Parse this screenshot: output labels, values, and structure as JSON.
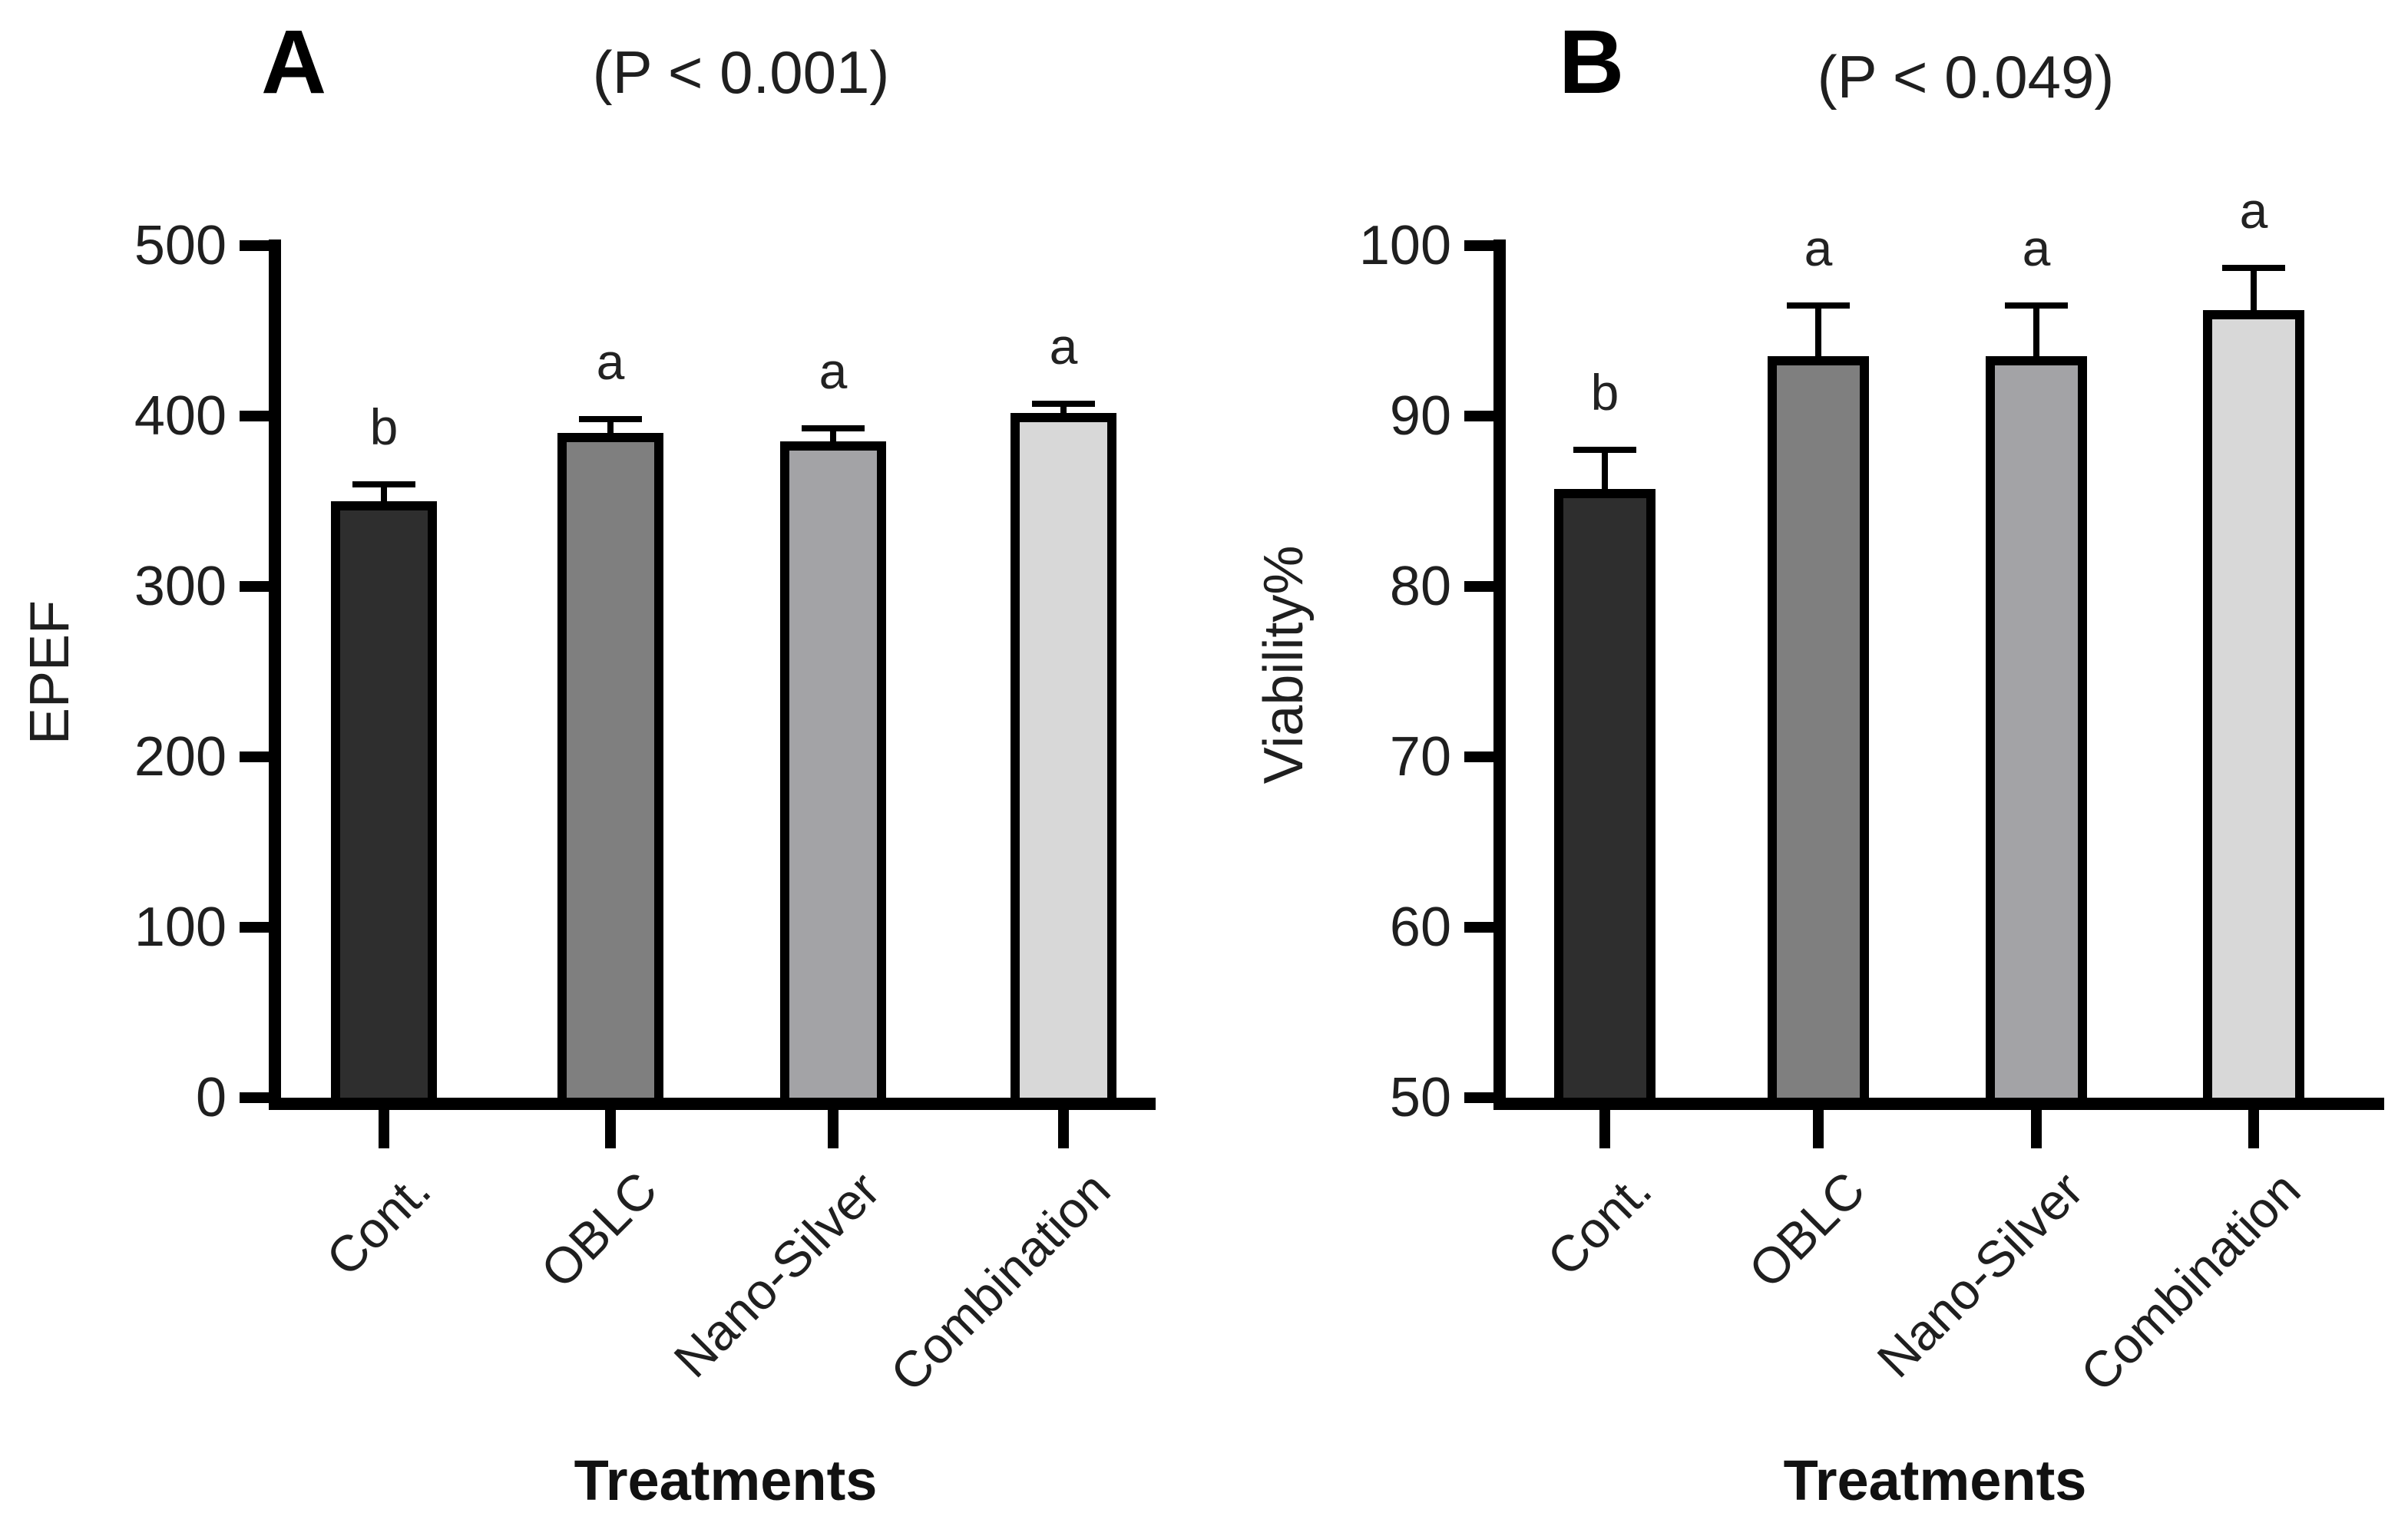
{
  "chart_data": [
    {
      "type": "bar",
      "panel_label": "A",
      "title": "(P < 0.001)",
      "xlabel": "Treatments",
      "ylabel": "EPEF",
      "ylim": [
        0,
        500
      ],
      "yticks": [
        0,
        100,
        200,
        300,
        400,
        500
      ],
      "categories": [
        "Cont.",
        "OBLC",
        "Nano-Silver",
        "Combination"
      ],
      "values": [
        350,
        390,
        385,
        402
      ],
      "error_plus": [
        10,
        8,
        8,
        5
      ],
      "sig_letters": [
        "b",
        "a",
        "a",
        "a"
      ],
      "bar_colors": [
        "#2e2e2e",
        "#7f7f7f",
        "#a3a3a6",
        "#d8d8d8"
      ],
      "grid": false,
      "legend": null,
      "axis_color": "#000000",
      "text_color": "#1f1f1f"
    },
    {
      "type": "bar",
      "panel_label": "B",
      "title": "(P < 0.049)",
      "xlabel": "Treatments",
      "ylabel": "Viability%",
      "ylim": [
        50,
        100
      ],
      "yticks": [
        50,
        60,
        70,
        80,
        90,
        100
      ],
      "categories": [
        "Cont.",
        "OBLC",
        "Nano-Silver",
        "Combination"
      ],
      "values": [
        85.7,
        93.5,
        93.5,
        96.2
      ],
      "error_plus": [
        2.3,
        3.0,
        3.0,
        2.5
      ],
      "sig_letters": [
        "b",
        "a",
        "a",
        "a"
      ],
      "bar_colors": [
        "#2e2e2e",
        "#7f7f7f",
        "#a3a3a6",
        "#d8d8d8"
      ],
      "grid": false,
      "legend": null,
      "axis_color": "#000000",
      "text_color": "#1f1f1f"
    }
  ]
}
